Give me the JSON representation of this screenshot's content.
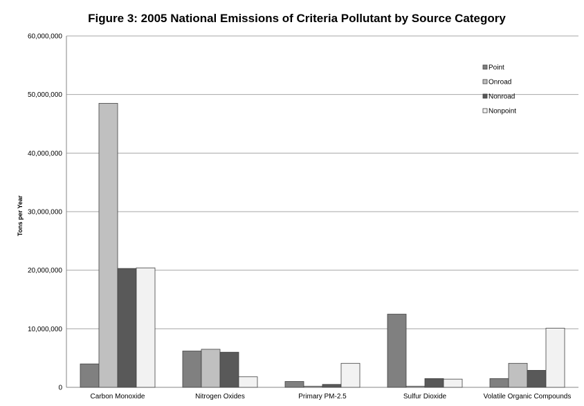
{
  "chart_data": {
    "type": "bar",
    "title": "Figure 3: 2005 National Emissions of Criteria Pollutant by Source Category",
    "ylabel": "Tons per Year",
    "xlabel": "",
    "ylim": [
      0,
      60000000
    ],
    "yticks": [
      0,
      10000000,
      20000000,
      30000000,
      40000000,
      50000000,
      60000000
    ],
    "ytick_labels": [
      "0",
      "10,000,000",
      "20,000,000",
      "30,000,000",
      "40,000,000",
      "50,000,000",
      "60,000,000"
    ],
    "grid": true,
    "legend_position": "top-right",
    "categories": [
      "Carbon Monoxide",
      "Nitrogen Oxides",
      "Primary PM-2.5",
      "Sulfur Dioxide",
      "Volatile Organic Compounds"
    ],
    "series": [
      {
        "name": "Point",
        "color": "#808080",
        "values": [
          4000000,
          6200000,
          1000000,
          12500000,
          1500000
        ]
      },
      {
        "name": "Onroad",
        "color": "#c0c0c0",
        "values": [
          48500000,
          6500000,
          200000,
          200000,
          4100000
        ]
      },
      {
        "name": "Nonroad",
        "color": "#595959",
        "values": [
          20300000,
          6000000,
          500000,
          1500000,
          2900000
        ]
      },
      {
        "name": "Nonpoint",
        "color": "#f2f2f2",
        "values": [
          20400000,
          1800000,
          4100000,
          1400000,
          10100000
        ]
      }
    ]
  }
}
